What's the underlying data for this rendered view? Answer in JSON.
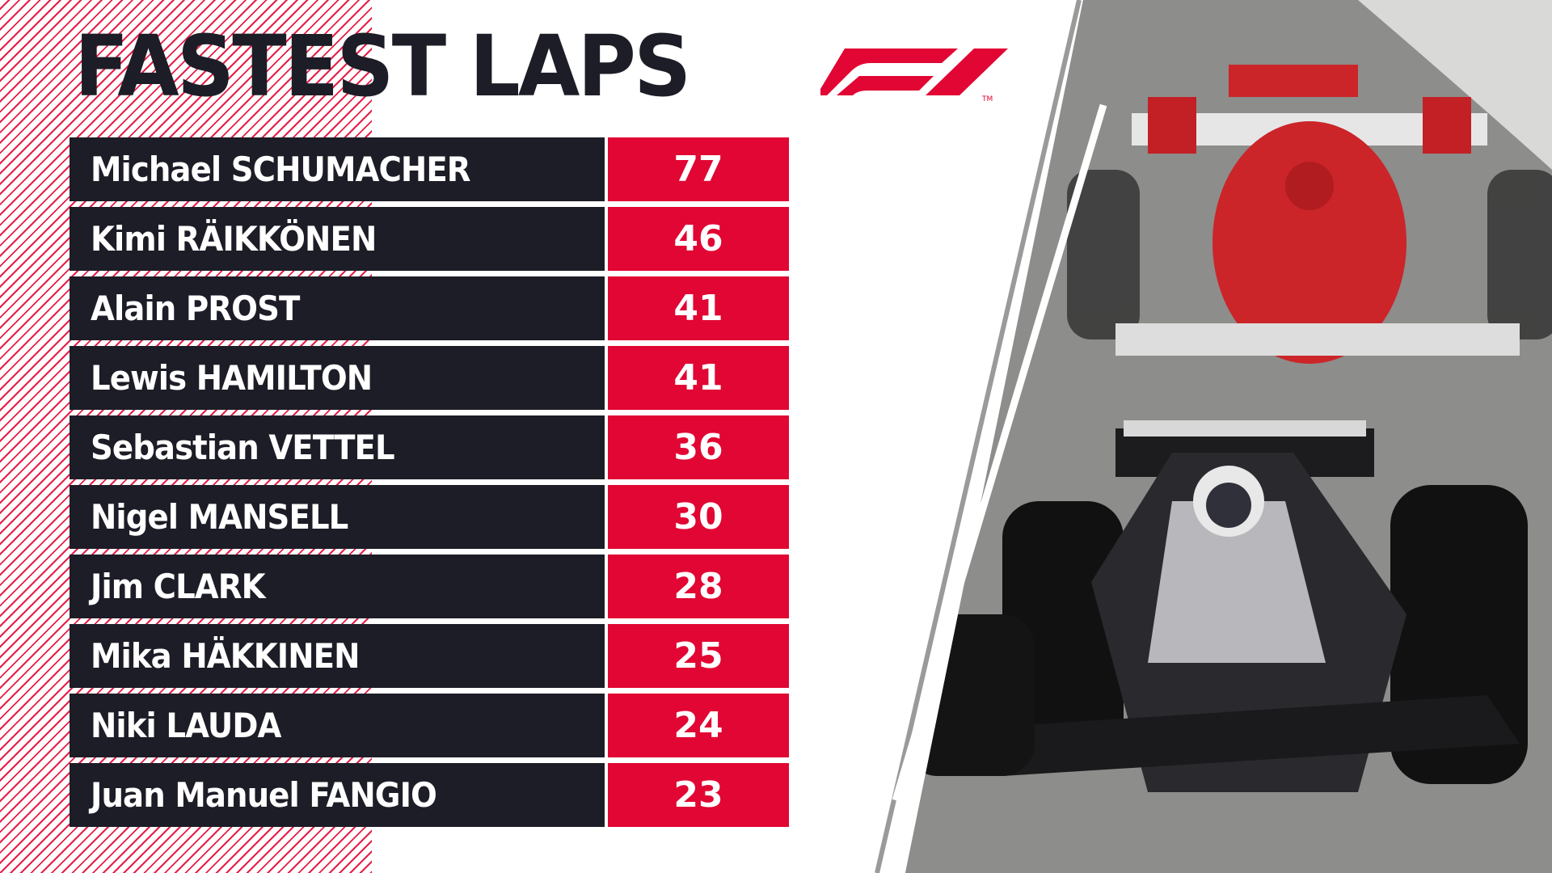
{
  "title": "FASTEST LAPS",
  "colors": {
    "accent": "#e10633",
    "dark": "#1d1d27",
    "background": "#ffffff"
  },
  "logo": {
    "icon": "f1-logo-icon"
  },
  "chart_data": {
    "type": "table",
    "rows": [
      {
        "driver": "Michael SCHUMACHER",
        "value": "77"
      },
      {
        "driver": "Kimi RÄIKKÖNEN",
        "value": "46"
      },
      {
        "driver": "Alain PROST",
        "value": "41"
      },
      {
        "driver": "Lewis HAMILTON",
        "value": "41"
      },
      {
        "driver": "Sebastian VETTEL",
        "value": "36"
      },
      {
        "driver": "Nigel MANSELL",
        "value": "30"
      },
      {
        "driver": "Jim CLARK",
        "value": "28"
      },
      {
        "driver": "Mika HÄKKINEN",
        "value": "25"
      },
      {
        "driver": "Niki LAUDA",
        "value": "24"
      },
      {
        "driver": "Juan Manuel FANGIO",
        "value": "23"
      }
    ]
  }
}
